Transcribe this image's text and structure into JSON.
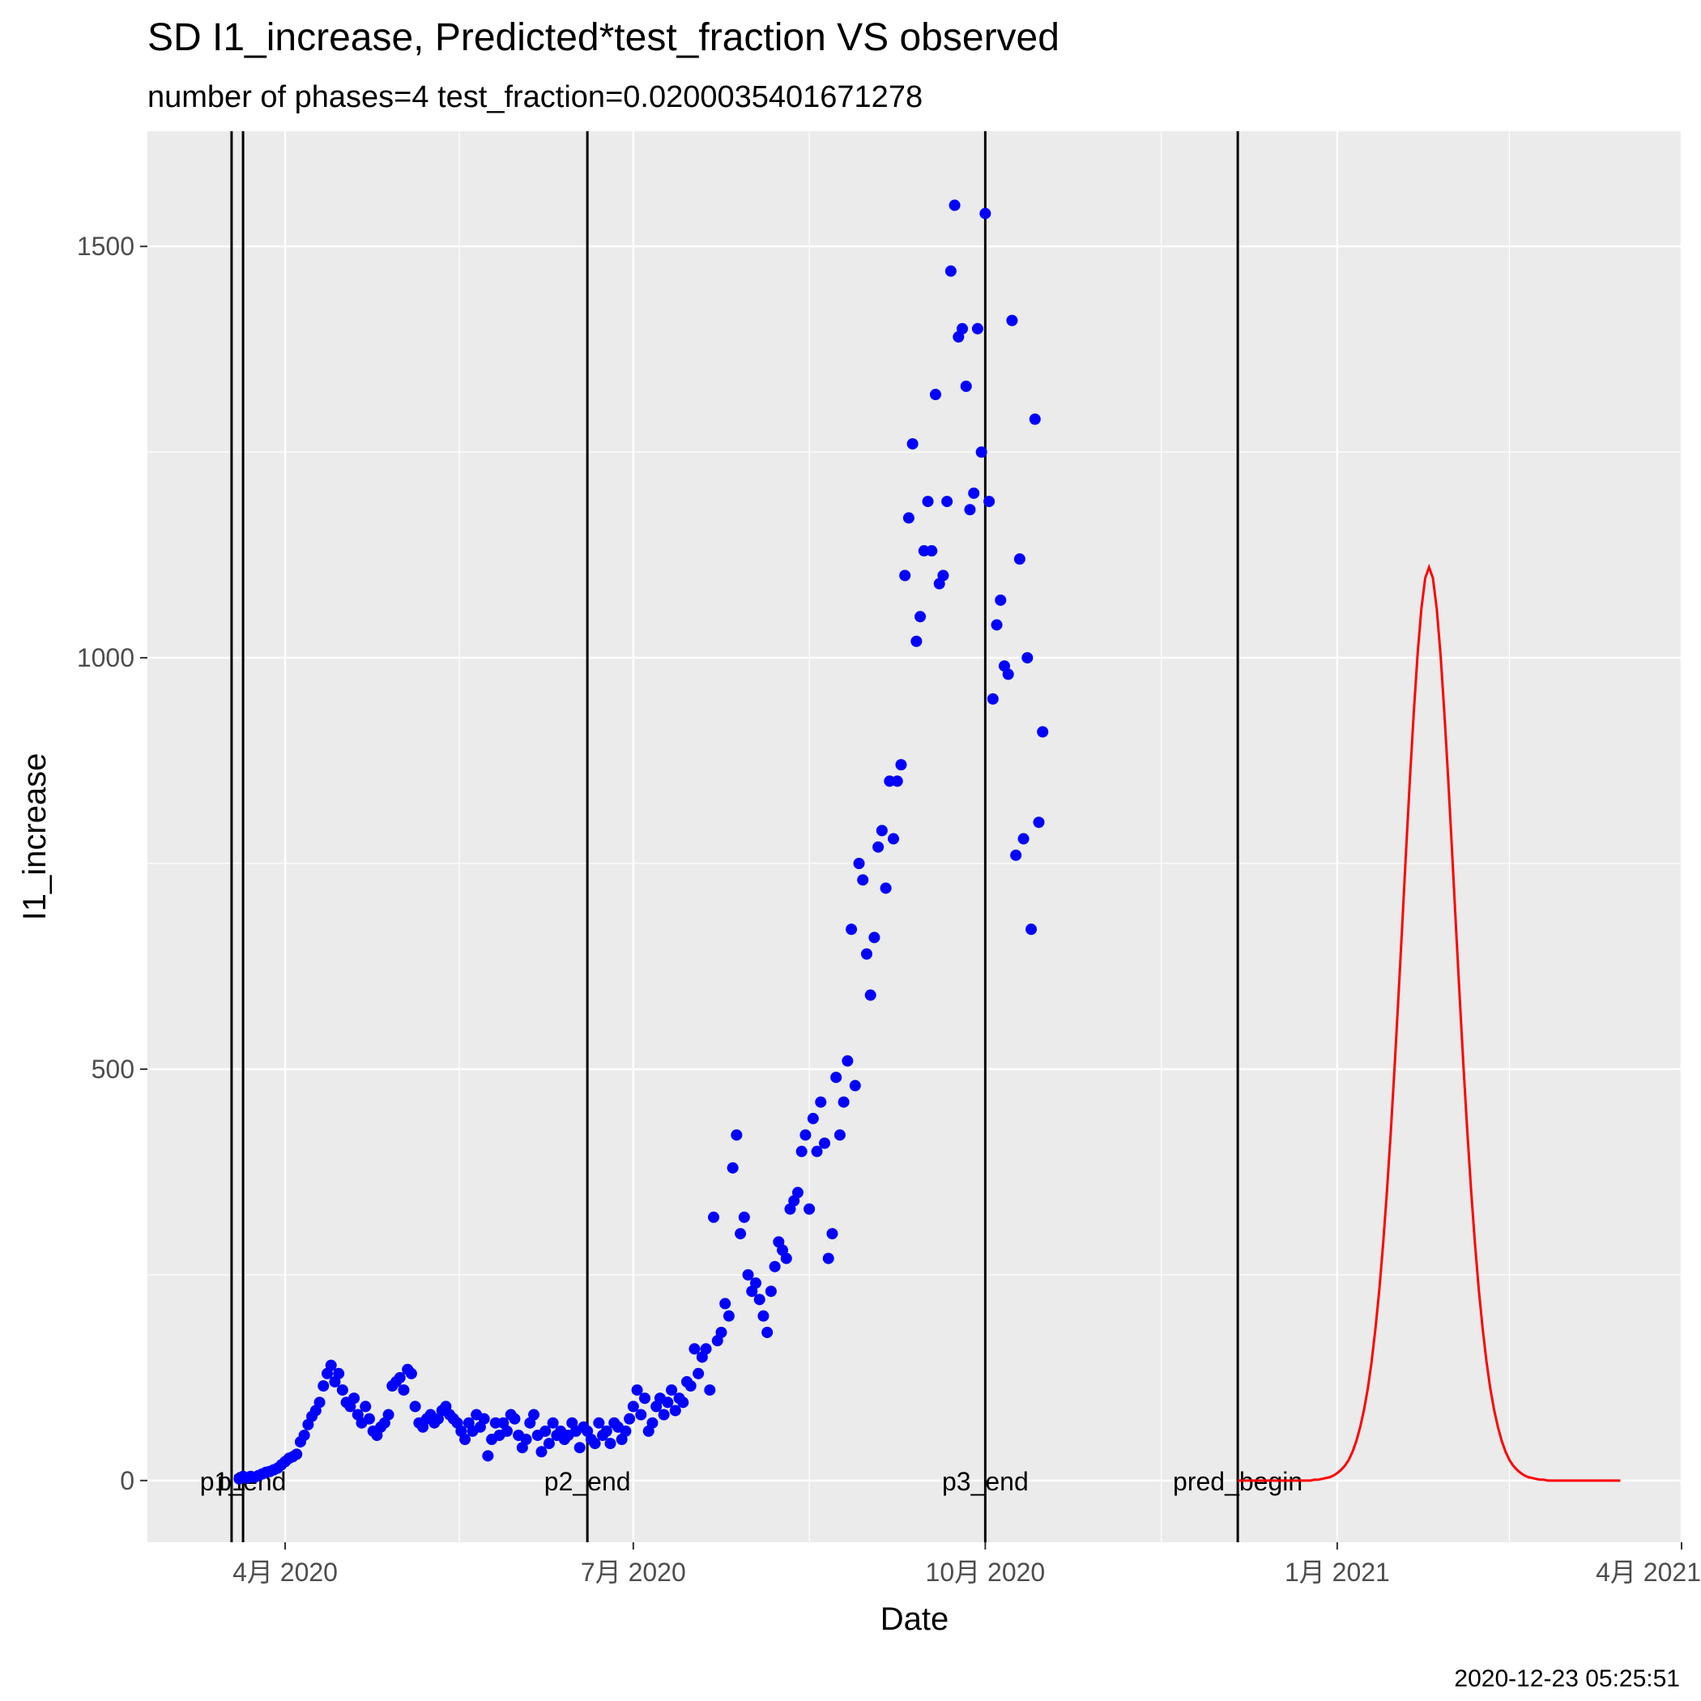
{
  "chart_data": {
    "type": "scatter",
    "title": "SD I1_increase, Predicted*test_fraction VS observed",
    "subtitle": "number of phases=4   test_fraction=0.0200035401671278",
    "xlabel": "Date",
    "ylabel": "I1_increase",
    "footer": "2020-12-23 05:25:51",
    "xlim": [
      "2020-02-25",
      "2021-04-01"
    ],
    "ylim": [
      -75,
      1640
    ],
    "grid": true,
    "legend": "none",
    "x_ticks": [
      {
        "date": "2020-04-01",
        "label": "4月 2020"
      },
      {
        "date": "2020-07-01",
        "label": "7月 2020"
      },
      {
        "date": "2020-10-01",
        "label": "10月 2020"
      },
      {
        "date": "2021-01-01",
        "label": "1月 2021"
      },
      {
        "date": "2021-04-01",
        "label": "4月 2021"
      }
    ],
    "y_ticks": [
      0,
      500,
      1000,
      1500
    ],
    "colors": {
      "observed": "#0000ff",
      "predicted": "#ff0000",
      "vline": "#000000",
      "panel": "#ebebeb",
      "grid": "#ffffff"
    },
    "vlines": [
      {
        "date": "2020-03-18",
        "label": "p1"
      },
      {
        "date": "2020-03-21",
        "label": "p1_end"
      },
      {
        "date": "2020-06-19",
        "label": "p2_end"
      },
      {
        "date": "2020-10-01",
        "label": "p3_end"
      },
      {
        "date": "2020-12-06",
        "label": "pred_begin"
      }
    ],
    "observed": {
      "start": "2020-03-20",
      "values": [
        2,
        5,
        3,
        5,
        4,
        6,
        8,
        10,
        11,
        13,
        15,
        19,
        23,
        27,
        29,
        32,
        47,
        55,
        68,
        78,
        85,
        95,
        115,
        130,
        140,
        120,
        130,
        110,
        95,
        90,
        100,
        80,
        70,
        90,
        75,
        60,
        55,
        65,
        70,
        80,
        115,
        120,
        125,
        110,
        135,
        130,
        90,
        70,
        65,
        75,
        80,
        70,
        75,
        85,
        90,
        80,
        75,
        70,
        60,
        50,
        70,
        60,
        80,
        65,
        75,
        30,
        50,
        70,
        55,
        70,
        60,
        80,
        75,
        55,
        40,
        50,
        70,
        80,
        55,
        35,
        60,
        45,
        70,
        55,
        60,
        50,
        55,
        70,
        60,
        40,
        65,
        60,
        50,
        45,
        70,
        55,
        60,
        45,
        70,
        65,
        50,
        60,
        75,
        90,
        110,
        80,
        100,
        60,
        70,
        90,
        100,
        80,
        95,
        110,
        85,
        100,
        95,
        120,
        115,
        160,
        130,
        150,
        160,
        110,
        320,
        170,
        180,
        215,
        200,
        380,
        420,
        300,
        320,
        250,
        230,
        240,
        220,
        200,
        180,
        230,
        260,
        290,
        280,
        270,
        330,
        340,
        350,
        400,
        420,
        330,
        440,
        400,
        460,
        410,
        270,
        300,
        490,
        420,
        460,
        510,
        670,
        480,
        750,
        730,
        640,
        590,
        660,
        770,
        790,
        720,
        850,
        780,
        850,
        870,
        1100,
        1170,
        1260,
        1020,
        1050,
        1130,
        1190,
        1130,
        1320,
        1090,
        1100,
        1190,
        1470,
        1550,
        1390,
        1400,
        1330,
        1180,
        1200,
        1400,
        1250,
        1540,
        1190,
        950,
        1040,
        1070,
        990,
        980,
        1410,
        760,
        1120,
        780,
        1000,
        670,
        1290,
        800,
        910
      ]
    },
    "predicted": {
      "start": "2020-12-06",
      "values": [
        0,
        0,
        0,
        0,
        0,
        0,
        0,
        0,
        0,
        0,
        0,
        0,
        0,
        0,
        0,
        0,
        0,
        0,
        0,
        0,
        1,
        1,
        2,
        3,
        4,
        6,
        9,
        13,
        18,
        25,
        35,
        48,
        65,
        86,
        112,
        145,
        185,
        232,
        288,
        352,
        424,
        503,
        588,
        676,
        766,
        853,
        933,
        1004,
        1060,
        1097,
        1110,
        1097,
        1060,
        1004,
        933,
        853,
        766,
        676,
        588,
        503,
        424,
        352,
        288,
        232,
        185,
        145,
        112,
        86,
        65,
        48,
        35,
        25,
        18,
        13,
        9,
        6,
        4,
        3,
        2,
        1,
        1,
        0,
        0,
        0,
        0,
        0,
        0,
        0,
        0,
        0,
        0,
        0,
        0,
        0,
        0,
        0,
        0,
        0,
        0,
        0,
        0
      ]
    }
  }
}
